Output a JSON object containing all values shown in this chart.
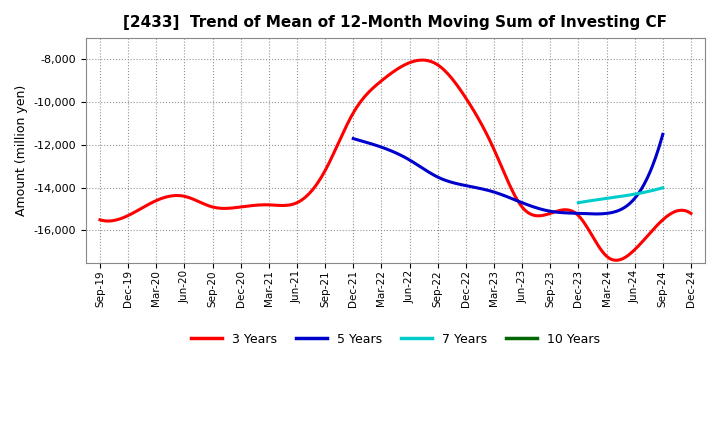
{
  "title": "[2433]  Trend of Mean of 12-Month Moving Sum of Investing CF",
  "ylabel": "Amount (million yen)",
  "background_color": "#ffffff",
  "plot_bg_color": "#ffffff",
  "grid_color": "#aaaaaa",
  "ylim": [
    -17500,
    -7000
  ],
  "yticks": [
    -16000,
    -14000,
    -12000,
    -10000,
    -8000
  ],
  "x_labels": [
    "Sep-19",
    "Dec-19",
    "Mar-20",
    "Jun-20",
    "Sep-20",
    "Dec-20",
    "Mar-21",
    "Jun-21",
    "Sep-21",
    "Dec-21",
    "Mar-22",
    "Jun-22",
    "Sep-22",
    "Dec-22",
    "Mar-23",
    "Jun-23",
    "Sep-23",
    "Dec-23",
    "Mar-24",
    "Jun-24",
    "Sep-24",
    "Dec-24"
  ],
  "series": {
    "3yr": {
      "color": "#ff0000",
      "label": "3 Years",
      "values": [
        -15500,
        -15300,
        -14600,
        -14400,
        -14900,
        -14900,
        -14800,
        -14700,
        -13200,
        -10500,
        -9000,
        -8150,
        -8250,
        -9800,
        -12200,
        -14900,
        -15200,
        -15300,
        -17200,
        -16900,
        -15500,
        -15200
      ]
    },
    "5yr": {
      "color": "#0000cc",
      "label": "5 Years",
      "values": [
        null,
        null,
        null,
        null,
        null,
        null,
        null,
        null,
        null,
        -11700,
        -12100,
        -12700,
        -13500,
        -13900,
        -14200,
        -14700,
        -15100,
        -15200,
        -15200,
        -14500,
        -11500,
        null
      ]
    },
    "7yr": {
      "color": "#00cccc",
      "label": "7 Years",
      "values": [
        null,
        null,
        null,
        null,
        null,
        null,
        null,
        null,
        null,
        null,
        null,
        null,
        null,
        null,
        null,
        null,
        null,
        -14700,
        -14500,
        -14300,
        -14000,
        null
      ]
    },
    "10yr": {
      "color": "#006600",
      "label": "10 Years",
      "values": [
        null,
        null,
        null,
        null,
        null,
        null,
        null,
        null,
        null,
        null,
        null,
        null,
        null,
        null,
        null,
        null,
        null,
        null,
        null,
        null,
        null,
        null
      ]
    }
  },
  "legend_entries": [
    "3 Years",
    "5 Years",
    "7 Years",
    "10 Years"
  ],
  "legend_colors": [
    "#ff0000",
    "#0000cc",
    "#00cccc",
    "#006600"
  ]
}
